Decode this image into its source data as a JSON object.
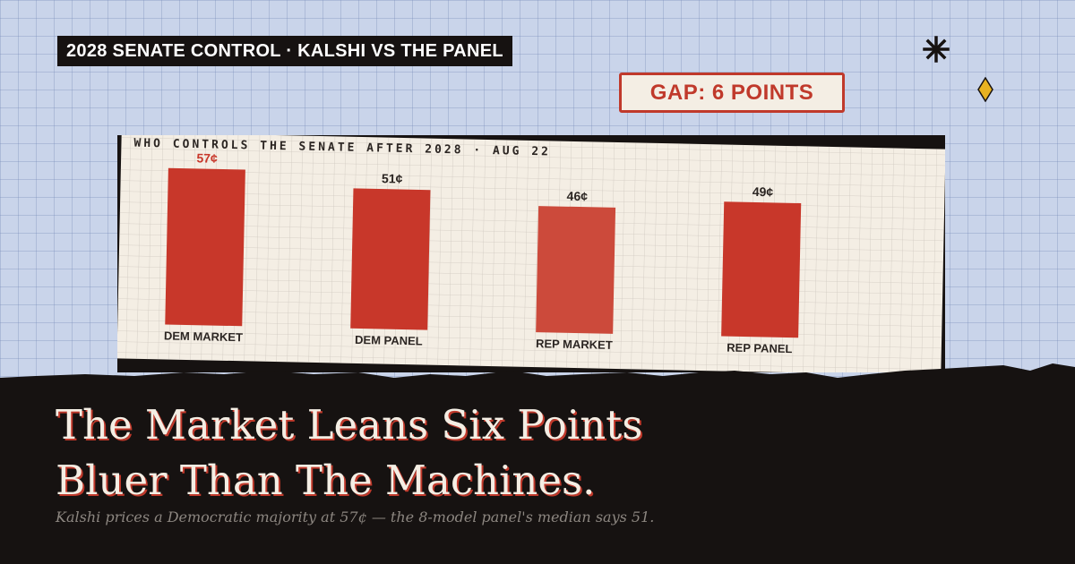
{
  "header": {
    "kicker": "2028 SENATE CONTROL · KALSHI VS THE PANEL",
    "gap_badge": "GAP: 6 POINTS"
  },
  "decorations": {
    "asterisk_icon": "asterisk-icon",
    "diamond_icon": "diamond-icon",
    "diamond_color": "#e8b221"
  },
  "chart_data": {
    "type": "bar",
    "title": "WHO CONTROLS THE SENATE AFTER 2028 · AUG 22",
    "categories": [
      "DEM MARKET",
      "DEM PANEL",
      "REP MARKET",
      "REP PANEL"
    ],
    "values": [
      57,
      51,
      46,
      49
    ],
    "value_labels": [
      "57¢",
      "51¢",
      "46¢",
      "49¢"
    ],
    "unit": "¢",
    "ylim": [
      0,
      60
    ],
    "grid": true,
    "highlight_index": 0,
    "colors": {
      "bar": "#c8372a",
      "bar_alt": "#cc4a3b",
      "highlight_label": "#c8372a",
      "label": "#2b2522",
      "paper": "#f4eee4",
      "grid": "#cfc8bf"
    }
  },
  "footer": {
    "headline_line1": "The Market Leans Six Points",
    "headline_line2": "Bluer Than The Machines.",
    "deck": "Kalshi prices a Democratic majority at 57¢ — the 8-model panel's median says 51."
  },
  "colors": {
    "background": "#c9d4ea",
    "ink": "#161211",
    "accent": "#c0392b",
    "cream": "#f4eee4"
  }
}
